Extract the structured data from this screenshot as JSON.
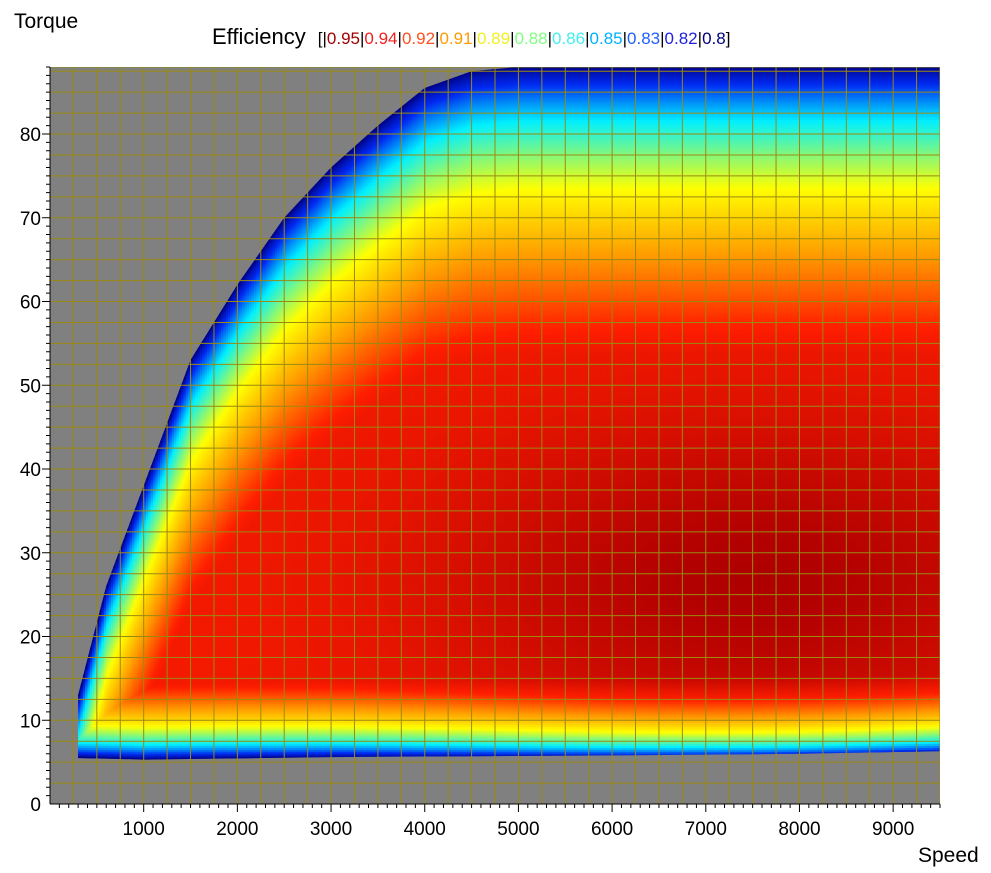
{
  "chart_data": {
    "type": "heatmap",
    "title": "Efficiency",
    "xlabel": "Speed",
    "ylabel": "Torque",
    "xlim": [
      0,
      9500
    ],
    "ylim": [
      0,
      88
    ],
    "x_ticks": [
      1000,
      2000,
      3000,
      4000,
      5000,
      6000,
      7000,
      8000,
      9000
    ],
    "y_ticks": [
      0,
      10,
      20,
      30,
      40,
      50,
      60,
      70,
      80
    ],
    "grid": true,
    "grid_color": "#9a8a10",
    "background_color": "#808080",
    "legend_placement": "top",
    "legend_levels": [
      "0.95",
      "0.94",
      "0.92",
      "0.91",
      "0.89",
      "0.88",
      "0.86",
      "0.85",
      "0.83",
      "0.82",
      "0.8"
    ],
    "legend_colors": [
      "#a00000",
      "#f02020",
      "#ff5020",
      "#ff9a00",
      "#f0f020",
      "#80ff80",
      "#40f0f0",
      "#00b0ff",
      "#2060ff",
      "#2020e0",
      "#000080"
    ],
    "max_torque_curve": {
      "speed": [
        300,
        600,
        1000,
        1500,
        2000,
        2500,
        3000,
        3500,
        4000,
        4500,
        5000,
        6000,
        7000,
        8000,
        9000,
        9500
      ],
      "torque": [
        13,
        26,
        38,
        53,
        62,
        70,
        76,
        81,
        85.5,
        87.5,
        88,
        88,
        88,
        88,
        88,
        88
      ]
    },
    "min_torque_curve": {
      "speed": [
        300,
        1000,
        3000,
        6000,
        8000,
        9500
      ],
      "torque": [
        5.5,
        5.3,
        5.6,
        5.8,
        6.0,
        6.3
      ]
    },
    "peak_region": {
      "speed": 7500,
      "torque": 27,
      "efficiency": 0.95
    }
  }
}
